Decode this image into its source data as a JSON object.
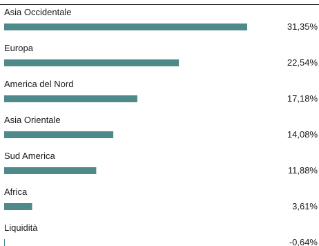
{
  "colors": {
    "bar": "#4f8a8b",
    "text": "#1a1a1a",
    "rule": "#333333"
  },
  "chart_data": {
    "type": "bar",
    "orientation": "horizontal",
    "categories": [
      "Asia Occidentale",
      "Europa",
      "America del Nord",
      "Asia Orientale",
      "Sud America",
      "Africa",
      "Liquidità"
    ],
    "values": [
      31.35,
      22.54,
      17.18,
      14.08,
      11.88,
      3.61,
      -0.64
    ],
    "value_labels": [
      "31,35%",
      "22,54%",
      "17,18%",
      "14,08%",
      "11,88%",
      "3,61%",
      "-0,64%"
    ],
    "title": "",
    "xlabel": "",
    "ylabel": "",
    "xlim": [
      0,
      31.35
    ],
    "grid": false,
    "legend": "none"
  }
}
